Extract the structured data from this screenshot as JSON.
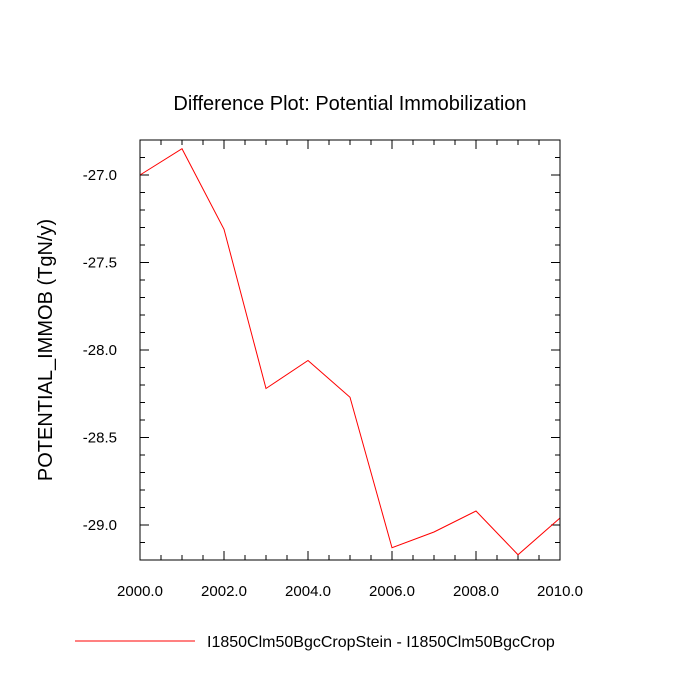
{
  "chart_data": {
    "type": "line",
    "title": "Difference Plot: Potential Immobilization",
    "xlabel": "",
    "ylabel": "POTENTIAL_IMMOB  (TgN/y)",
    "xlim": [
      2000,
      2010
    ],
    "ylim": [
      -29.2,
      -26.8
    ],
    "xticks": [
      2000,
      2002,
      2004,
      2006,
      2008,
      2010
    ],
    "xtick_labels": [
      "2000.0",
      "2002.0",
      "2004.0",
      "2006.0",
      "2008.0",
      "2010.0"
    ],
    "yticks": [
      -27.0,
      -27.5,
      -28.0,
      -28.5,
      -29.0
    ],
    "ytick_labels": [
      "-27.0",
      "-27.5",
      "-28.0",
      "-28.5",
      "-29.0"
    ],
    "grid": false,
    "legend_position": "bottom",
    "series": [
      {
        "name": "I1850Clm50BgcCropStein - I1850Clm50BgcCrop",
        "color": "#ff0000",
        "x": [
          2000,
          2001,
          2002,
          2003,
          2004,
          2005,
          2006,
          2007,
          2008,
          2009,
          2010
        ],
        "y": [
          -27.0,
          -26.85,
          -27.31,
          -28.22,
          -28.06,
          -28.27,
          -29.13,
          -29.04,
          -28.92,
          -29.17,
          -28.96
        ]
      }
    ]
  }
}
